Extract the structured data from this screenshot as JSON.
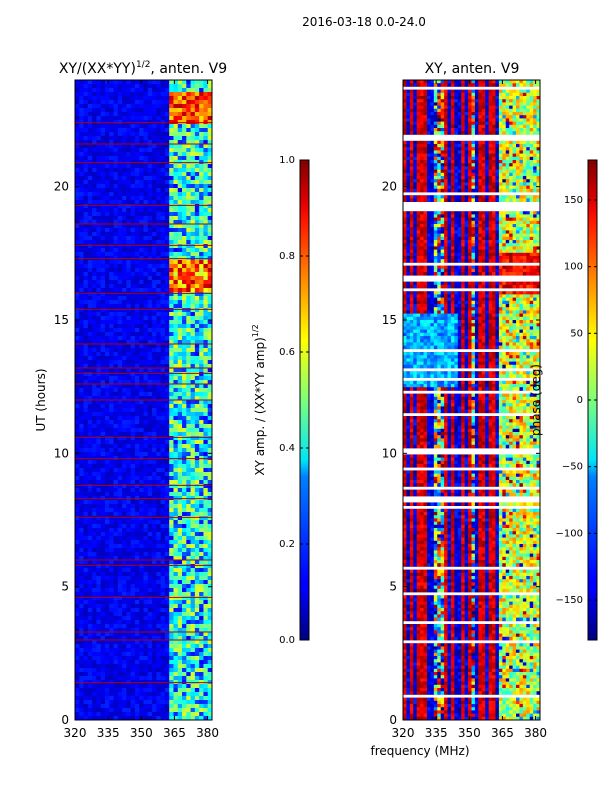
{
  "figure_title": "2016-03-18 0.0-24.0",
  "xlabel": "frequency (MHz)",
  "chart_data": [
    {
      "type": "heatmap",
      "title_main": "XY/(XX*YY)",
      "title_sup": "1/2",
      "title_tail": ", anten. V9",
      "xlabel": "",
      "ylabel": "UT (hours)",
      "xlim": [
        320,
        382
      ],
      "ylim": [
        0,
        24
      ],
      "xticks": [
        320,
        335,
        350,
        365,
        380
      ],
      "yticks": [
        0,
        5,
        10,
        15,
        20
      ],
      "colormap": "jet",
      "value_description": "normalized cross-correlation amplitude; mostly ~0.1 below 363 MHz, ~0.3-0.6 above 363 MHz, peaks ~0.9 near 16.5 h and 23 h",
      "colorbar": {
        "label_main": "XY amp. / (XX*YY amp)",
        "label_sup": "1/2",
        "range": [
          0.0,
          1.0
        ],
        "ticks": [
          0.0,
          0.2,
          0.4,
          0.6,
          0.8,
          1.0
        ],
        "tick_labels": [
          "0.0",
          "0.2",
          "0.4",
          "0.6",
          "0.8",
          "1.0"
        ]
      }
    },
    {
      "type": "heatmap",
      "title": "XY, anten. V9",
      "xlabel": "frequency (MHz)",
      "ylabel": "",
      "xlim": [
        320,
        382
      ],
      "ylim": [
        0,
        24
      ],
      "xticks": [
        320,
        335,
        350,
        365,
        380
      ],
      "yticks": [
        0,
        5,
        10,
        15,
        20
      ],
      "colormap": "jet",
      "value_description": "cross-correlation phase in degrees, spanning -180 to 180 with frequent white (flagged) rows",
      "colorbar": {
        "label": "phase (deg)",
        "range": [
          -180,
          180
        ],
        "ticks": [
          -150,
          -100,
          -50,
          0,
          50,
          100,
          150
        ],
        "tick_labels": [
          "−150",
          "−100",
          "−50",
          "0",
          "50",
          "100",
          "150"
        ]
      }
    }
  ]
}
